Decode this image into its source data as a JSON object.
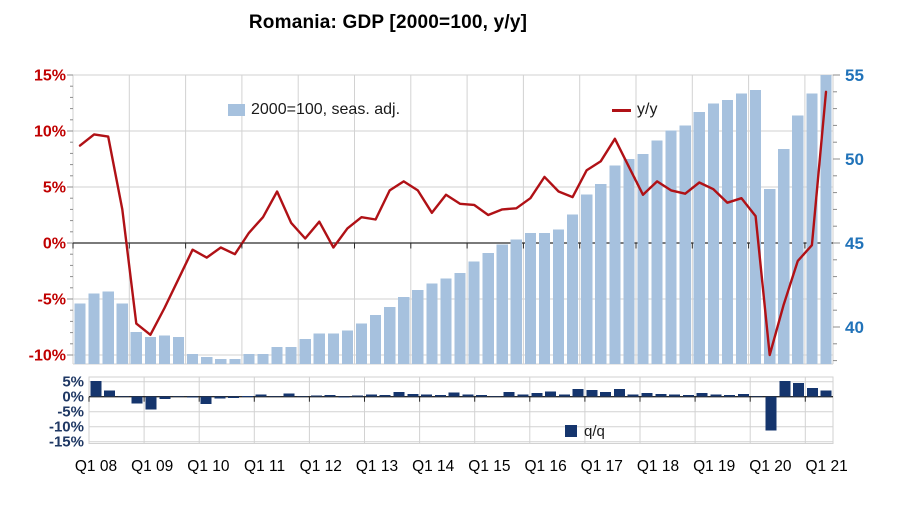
{
  "title": "Romania: GDP [2000=100, y/y]",
  "legend": {
    "index_label": "2000=100, seas. adj.",
    "yy_label": "y/y",
    "qq_label": "q/q"
  },
  "colors": {
    "bar_blue": "#a6c1de",
    "line_red": "#b01116",
    "left_axis_red": "#c00000",
    "right_axis_blue": "#2173b9",
    "qq_navy": "#15356d",
    "lower_axis_navy": "#1f3864",
    "grid": "#d2d2d2",
    "zero_line": "#2a2a2a",
    "x_label_black": "#000000"
  },
  "axes": {
    "left_ticks": [
      {
        "label": "15%",
        "value": 15
      },
      {
        "label": "10%",
        "value": 10
      },
      {
        "label": "5%",
        "value": 5
      },
      {
        "label": "0%",
        "value": 0
      },
      {
        "label": "-5%",
        "value": -5
      },
      {
        "label": "-10%",
        "value": -10
      }
    ],
    "right_ticks": [
      {
        "label": "55",
        "value": 55
      },
      {
        "label": "50",
        "value": 50
      },
      {
        "label": "45",
        "value": 45
      },
      {
        "label": "40",
        "value": 40
      }
    ],
    "lower_ticks": [
      {
        "label": "5%",
        "value": 5
      },
      {
        "label": "0%",
        "value": 0
      },
      {
        "label": "-5%",
        "value": -5
      },
      {
        "label": "-10%",
        "value": -10
      },
      {
        "label": "-15%",
        "value": -15
      }
    ],
    "x_labels": [
      "Q1 08",
      "Q1 09",
      "Q1 10",
      "Q1 11",
      "Q1 12",
      "Q1 13",
      "Q1 14",
      "Q1 15",
      "Q1 16",
      "Q1 17",
      "Q1 18",
      "Q1 19",
      "Q1 20",
      "Q1 21"
    ]
  },
  "chart_data": [
    {
      "type": "bar+line",
      "title": "Romania: GDP [2000=100, y/y]",
      "x": [
        "2008Q1",
        "2008Q2",
        "2008Q3",
        "2008Q4",
        "2009Q1",
        "2009Q2",
        "2009Q3",
        "2009Q4",
        "2010Q1",
        "2010Q2",
        "2010Q3",
        "2010Q4",
        "2011Q1",
        "2011Q2",
        "2011Q3",
        "2011Q4",
        "2012Q1",
        "2012Q2",
        "2012Q3",
        "2012Q4",
        "2013Q1",
        "2013Q2",
        "2013Q3",
        "2013Q4",
        "2014Q1",
        "2014Q2",
        "2014Q3",
        "2014Q4",
        "2015Q1",
        "2015Q2",
        "2015Q3",
        "2015Q4",
        "2016Q1",
        "2016Q2",
        "2016Q3",
        "2016Q4",
        "2017Q1",
        "2017Q2",
        "2017Q3",
        "2017Q4",
        "2018Q1",
        "2018Q2",
        "2018Q3",
        "2018Q4",
        "2019Q1",
        "2019Q2",
        "2019Q3",
        "2019Q4",
        "2020Q1",
        "2020Q2",
        "2020Q3",
        "2020Q4",
        "2021Q1",
        "2021Q2"
      ],
      "left_axis": {
        "label_format": "percent",
        "ylim": [
          -10,
          15
        ],
        "gridlines": [
          15,
          10,
          5,
          0,
          -5,
          -10
        ]
      },
      "right_axis": {
        "label_format": "index",
        "ylim": [
          37.8,
          55
        ],
        "gridlines": [
          55,
          50,
          45,
          40
        ]
      },
      "series": [
        {
          "name": "2000=100, seas. adj.",
          "type": "bar",
          "axis": "right",
          "values": [
            41.4,
            42.0,
            42.1,
            41.4,
            39.7,
            39.4,
            39.5,
            39.4,
            38.4,
            38.2,
            38.1,
            38.1,
            38.4,
            38.4,
            38.8,
            38.8,
            39.3,
            39.6,
            39.6,
            39.8,
            40.2,
            40.7,
            41.2,
            41.8,
            42.2,
            42.6,
            42.9,
            43.2,
            43.9,
            44.4,
            44.9,
            45.2,
            45.6,
            45.6,
            45.8,
            46.7,
            47.9,
            48.5,
            49.6,
            50.0,
            50.3,
            51.1,
            51.7,
            52.0,
            52.8,
            53.3,
            53.5,
            53.9,
            54.1,
            48.2,
            50.6,
            52.6,
            53.9,
            55.0
          ]
        },
        {
          "name": "y/y",
          "type": "line",
          "axis": "left",
          "values": [
            8.7,
            9.7,
            9.5,
            3.0,
            -7.2,
            -8.2,
            -5.8,
            -3.2,
            -0.6,
            -1.3,
            -0.4,
            -1.0,
            0.9,
            2.3,
            4.6,
            1.8,
            0.4,
            1.9,
            -0.4,
            1.3,
            2.3,
            2.1,
            4.7,
            5.5,
            4.7,
            2.7,
            4.3,
            3.5,
            3.4,
            2.5,
            3.0,
            3.1,
            4.0,
            5.9,
            4.6,
            4.1,
            6.5,
            7.3,
            9.3,
            6.8,
            4.3,
            5.5,
            4.7,
            4.4,
            5.4,
            4.8,
            3.6,
            4.0,
            2.4,
            -10.0,
            -5.5,
            -1.6,
            -0.2,
            13.5
          ]
        }
      ]
    },
    {
      "type": "bar",
      "title": "q/q",
      "x": [
        "2008Q1",
        "2008Q2",
        "2008Q3",
        "2008Q4",
        "2009Q1",
        "2009Q2",
        "2009Q3",
        "2009Q4",
        "2010Q1",
        "2010Q2",
        "2010Q3",
        "2010Q4",
        "2011Q1",
        "2011Q2",
        "2011Q3",
        "2011Q4",
        "2012Q1",
        "2012Q2",
        "2012Q3",
        "2012Q4",
        "2013Q1",
        "2013Q2",
        "2013Q3",
        "2013Q4",
        "2014Q1",
        "2014Q2",
        "2014Q3",
        "2014Q4",
        "2015Q1",
        "2015Q2",
        "2015Q3",
        "2015Q4",
        "2016Q1",
        "2016Q2",
        "2016Q3",
        "2016Q4",
        "2017Q1",
        "2017Q2",
        "2017Q3",
        "2017Q4",
        "2018Q1",
        "2018Q2",
        "2018Q3",
        "2018Q4",
        "2019Q1",
        "2019Q2",
        "2019Q3",
        "2019Q4",
        "2020Q1",
        "2020Q2",
        "2020Q3",
        "2020Q4",
        "2021Q1",
        "2021Q2"
      ],
      "ylabel": "q/q %",
      "ylim": [
        -15,
        5
      ],
      "values": [
        5.2,
        2.0,
        0.3,
        -2.3,
        -4.3,
        -0.8,
        0.3,
        -0.3,
        -2.5,
        -0.6,
        -0.4,
        0.2,
        0.8,
        0.1,
        1.0,
        0.1,
        0.4,
        0.6,
        -0.3,
        0.4,
        0.7,
        0.6,
        1.5,
        0.9,
        0.8,
        0.5,
        1.4,
        0.8,
        0.5,
        0.1,
        1.6,
        0.7,
        1.3,
        1.8,
        0.7,
        2.6,
        2.2,
        1.5,
        2.6,
        0.8,
        1.2,
        0.9,
        0.7,
        0.5,
        1.3,
        0.8,
        0.5,
        0.9,
        0.3,
        -11.3,
        5.2,
        4.6,
        2.9,
        2.0
      ]
    }
  ]
}
